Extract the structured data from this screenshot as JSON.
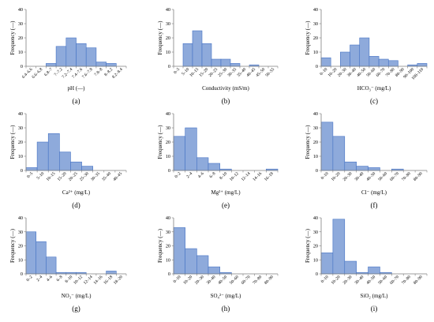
{
  "chart_data": [
    {
      "type": "bar",
      "panel_label": "(a)",
      "xlabel": "pH (—)",
      "ylabel": "Frequency (—)",
      "ylim": [
        0,
        40
      ],
      "yticks": [
        0,
        10,
        20,
        30,
        40
      ],
      "categories": [
        "6.4–6.6",
        "6.6–6.8",
        "6.8–7",
        "7–7.2",
        "7.2–7.4",
        "7.4–7.6",
        "7.6–7.8",
        "7.8–8",
        "8–8.2",
        "8.2–8.4"
      ],
      "values": [
        0,
        0,
        2,
        14,
        20,
        16,
        13,
        3,
        2,
        0
      ]
    },
    {
      "type": "bar",
      "panel_label": "(b)",
      "xlabel": "Conductivity (mS/m)",
      "ylabel": "Frequency (—)",
      "ylim": [
        0,
        40
      ],
      "yticks": [
        0,
        10,
        20,
        30,
        40
      ],
      "categories": [
        "0–5",
        "5–10",
        "10–15",
        "15–20",
        "20–25",
        "25–30",
        "30–35",
        "35–40",
        "40–45",
        "45–50",
        "50–55"
      ],
      "values": [
        0,
        16,
        25,
        16,
        5,
        5,
        2,
        0,
        1,
        0,
        0
      ]
    },
    {
      "type": "bar",
      "panel_label": "(c)",
      "xlabel": "HCO₃⁻ (mg/L)",
      "ylabel": "Frequency (—)",
      "ylim": [
        0,
        40
      ],
      "yticks": [
        0,
        10,
        20,
        30,
        40
      ],
      "categories": [
        "0–10",
        "10–20",
        "20–30",
        "30–40",
        "40–50",
        "50–60",
        "60–70",
        "70–80",
        "80–90",
        "90–100",
        "100–110"
      ],
      "values": [
        6,
        0,
        10,
        15,
        20,
        7,
        5,
        4,
        0,
        1,
        2
      ]
    },
    {
      "type": "bar",
      "panel_label": "(d)",
      "xlabel": "Ca²⁺ (mg/L)",
      "ylabel": "Frequency (—)",
      "ylim": [
        0,
        40
      ],
      "yticks": [
        0,
        10,
        20,
        30,
        40
      ],
      "categories": [
        "0–5",
        "5–10",
        "10–15",
        "15–20",
        "20–25",
        "25–30",
        "30–35",
        "35–40",
        "40–45"
      ],
      "values": [
        2,
        20,
        26,
        13,
        6,
        3,
        0,
        0,
        0
      ]
    },
    {
      "type": "bar",
      "panel_label": "(e)",
      "xlabel": "Mg²⁺ (mg/L)",
      "ylabel": "Frequency (—)",
      "ylim": [
        0,
        40
      ],
      "yticks": [
        0,
        10,
        20,
        30,
        40
      ],
      "categories": [
        "0–2",
        "2–4",
        "4–6",
        "6–8",
        "8–10",
        "10–12",
        "12–14",
        "14–16",
        "16–18"
      ],
      "values": [
        24,
        30,
        9,
        5,
        1,
        0,
        0,
        0,
        1
      ]
    },
    {
      "type": "bar",
      "panel_label": "(f)",
      "xlabel": "Cl⁻ (mg/L)",
      "ylabel": "Frequency (—)",
      "ylim": [
        0,
        40
      ],
      "yticks": [
        0,
        10,
        20,
        30,
        40
      ],
      "categories": [
        "0–10",
        "10–20",
        "20–30",
        "30–40",
        "40–50",
        "50–60",
        "60–70",
        "70–80",
        "80–90"
      ],
      "values": [
        34,
        24,
        6,
        3,
        2,
        0,
        1,
        0,
        0
      ]
    },
    {
      "type": "bar",
      "panel_label": "(g)",
      "xlabel": "NO₃⁻ (mg/L)",
      "ylabel": "Frequency (—)",
      "ylim": [
        0,
        40
      ],
      "yticks": [
        0,
        10,
        20,
        30,
        40
      ],
      "categories": [
        "0–2",
        "2–4",
        "4–6",
        "6–8",
        "8–10",
        "10–12",
        "12–14",
        "14–16",
        "16–18",
        "18–20"
      ],
      "values": [
        30,
        23,
        12,
        1,
        1,
        1,
        0,
        0,
        2,
        0
      ]
    },
    {
      "type": "bar",
      "panel_label": "(h)",
      "xlabel": "SO₄²⁻ (mg/L)",
      "ylabel": "Frequency (—)",
      "ylim": [
        0,
        40
      ],
      "yticks": [
        0,
        10,
        20,
        30,
        40
      ],
      "categories": [
        "0–10",
        "10–20",
        "20–30",
        "30–40",
        "40–50",
        "50–60",
        "60–70",
        "70–80",
        "80–90"
      ],
      "values": [
        33,
        18,
        13,
        5,
        1,
        0,
        0,
        0,
        0
      ]
    },
    {
      "type": "bar",
      "panel_label": "(i)",
      "xlabel": "SiO₂ (mg/L)",
      "ylabel": "Frequency (—)",
      "ylim": [
        0,
        40
      ],
      "yticks": [
        0,
        10,
        20,
        30,
        40
      ],
      "categories": [
        "0–10",
        "10–20",
        "20–30",
        "30–40",
        "40–50",
        "50–60",
        "60–70",
        "70–80",
        "80–90"
      ],
      "values": [
        15,
        39,
        9,
        1,
        5,
        1,
        0,
        0,
        0
      ]
    }
  ]
}
